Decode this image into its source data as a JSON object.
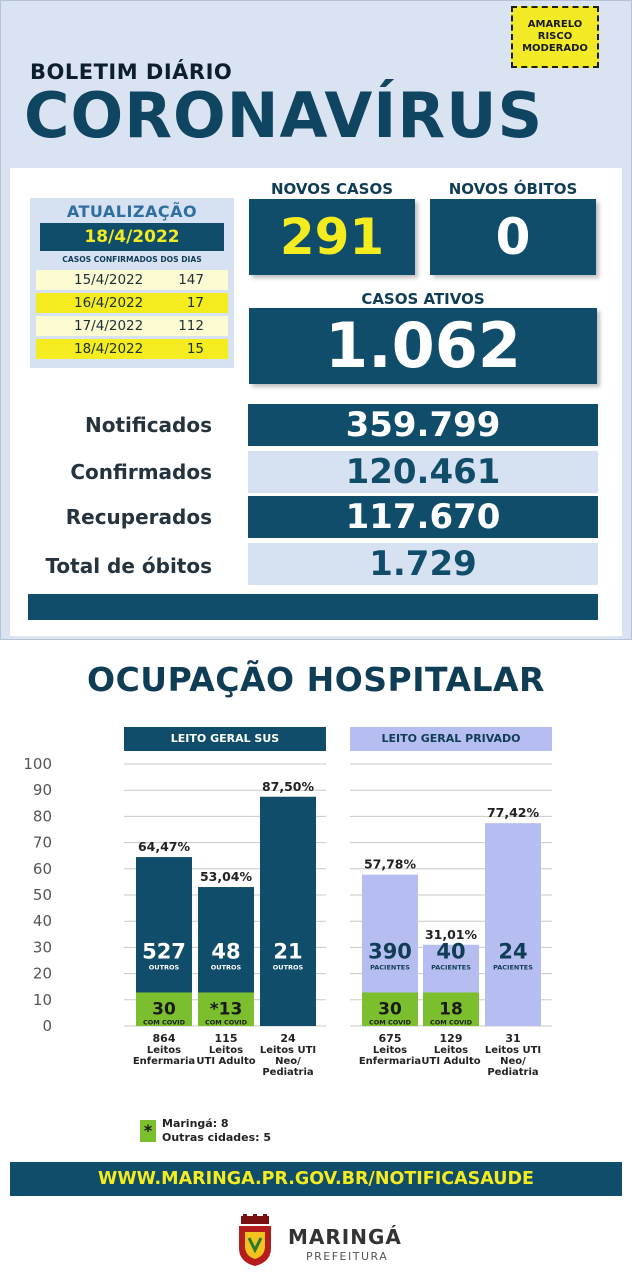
{
  "header": {
    "badge_line1": "AMARELO",
    "badge_line2": "RISCO",
    "badge_line3": "MODERADO",
    "bulletin": "BOLETIM DIÁRIO",
    "title": "CORONAVÍRUS"
  },
  "update": {
    "title": "ATUALIZAÇÃO",
    "date": "18/4/2022",
    "subtitle": "CASOS CONFIRMADOS DOS DIAS",
    "rows": [
      {
        "date": "15/4/2022",
        "value": "147"
      },
      {
        "date": "16/4/2022",
        "value": "17"
      },
      {
        "date": "17/4/2022",
        "value": "112"
      },
      {
        "date": "18/4/2022",
        "value": "15"
      }
    ]
  },
  "new_cases": {
    "label": "NOVOS CASOS",
    "value": "291"
  },
  "new_deaths": {
    "label": "NOVOS ÓBITOS",
    "value": "0"
  },
  "active_cases": {
    "label": "CASOS ATIVOS",
    "value": "1.062"
  },
  "stats": [
    {
      "label": "Notificados",
      "value": "359.799"
    },
    {
      "label": "Confirmados",
      "value": "120.461"
    },
    {
      "label": "Recuperados",
      "value": "117.670"
    },
    {
      "label": "Total de óbitos",
      "value": "1.729"
    }
  ],
  "hospital": {
    "title": "OCUPAÇÃO HOSPITALAR",
    "url": "WWW.MARINGA.PR.GOV.BR/NOTIFICASAUDE",
    "footnote_line1": "Maringá: 8",
    "footnote_line2": "Outras cidades: 5",
    "footnote_mark": "*"
  },
  "chart_data": {
    "type": "bar",
    "ylim": [
      0,
      100
    ],
    "yticks": [
      "0",
      "10",
      "20",
      "30",
      "40",
      "50",
      "60",
      "70",
      "80",
      "90",
      "100"
    ],
    "groups": [
      {
        "name": "LEITO GERAL SUS",
        "bars": [
          {
            "pct": 64.47,
            "pct_label": "64,47%",
            "others": "527",
            "others_label": "OUTROS",
            "covid": "30",
            "covid_label": "COM COVID",
            "covid_pct": 12.8,
            "beds": "864",
            "cat1": "Leitos",
            "cat2": "Enfermaria",
            "cat3": ""
          },
          {
            "pct": 53.04,
            "pct_label": "53,04%",
            "others": "48",
            "others_label": "OUTROS",
            "covid": "*13",
            "covid_label": "COM COVID",
            "covid_pct": 12.8,
            "beds": "115",
            "cat1": "Leitos",
            "cat2": "UTI Adulto",
            "cat3": ""
          },
          {
            "pct": 87.5,
            "pct_label": "87,50%",
            "others": "21",
            "others_label": "OUTROS",
            "covid": "",
            "covid_label": "",
            "covid_pct": 0,
            "beds": "24",
            "cat1": "Leitos UTI",
            "cat2": "Neo/",
            "cat3": "Pediatria"
          }
        ]
      },
      {
        "name": "LEITO GERAL PRIVADO",
        "bars": [
          {
            "pct": 57.78,
            "pct_label": "57,78%",
            "others": "390",
            "others_label": "PACIENTES",
            "covid": "30",
            "covid_label": "COM COVID",
            "covid_pct": 12.8,
            "beds": "675",
            "cat1": "Leitos",
            "cat2": "Enfermaria",
            "cat3": ""
          },
          {
            "pct": 31.01,
            "pct_label": "31,01%",
            "others": "40",
            "others_label": "PACIENTES",
            "covid": "18",
            "covid_label": "COM COVID",
            "covid_pct": 12.8,
            "beds": "129",
            "cat1": "Leitos",
            "cat2": "UTI Adulto",
            "cat3": ""
          },
          {
            "pct": 77.42,
            "pct_label": "77,42%",
            "others": "24",
            "others_label": "PACIENTES",
            "covid": "",
            "covid_label": "",
            "covid_pct": 0,
            "beds": "31",
            "cat1": "Leitos UTI",
            "cat2": "Neo/",
            "cat3": "Pediatria"
          }
        ]
      }
    ]
  },
  "colors": {
    "dark": "#0f4d6a",
    "light_purple": "#b6bdf0",
    "covid_green": "#7bbf2e",
    "yellow": "#f4ec1f"
  },
  "footer": {
    "logo_name": "MARINGÁ",
    "logo_sub": "PREFEITURA"
  }
}
